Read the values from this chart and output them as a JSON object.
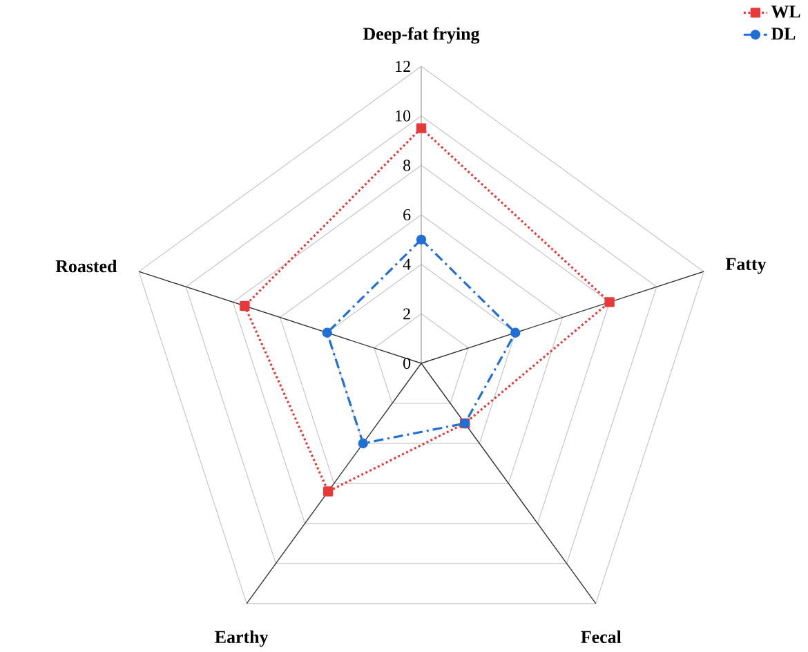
{
  "chart_data": {
    "type": "radar",
    "categories": [
      "Deep-fat frying",
      "Fatty",
      "Fecal",
      "Earthy",
      "Roasted"
    ],
    "ylim": [
      0,
      12
    ],
    "yticks": [
      0,
      2,
      4,
      6,
      8,
      10,
      12
    ],
    "grid": true,
    "legend": "top right",
    "series": [
      {
        "name": "WL",
        "color": "#e8393a",
        "values": [
          9.5,
          8.0,
          3.0,
          6.4,
          7.5
        ],
        "marker": "square",
        "line_style": "dotted"
      },
      {
        "name": "DL",
        "color": "#1f6fd6",
        "values": [
          5.0,
          4.0,
          3.0,
          4.0,
          4.0
        ],
        "marker": "circle",
        "line_style": "dashdot"
      }
    ]
  }
}
